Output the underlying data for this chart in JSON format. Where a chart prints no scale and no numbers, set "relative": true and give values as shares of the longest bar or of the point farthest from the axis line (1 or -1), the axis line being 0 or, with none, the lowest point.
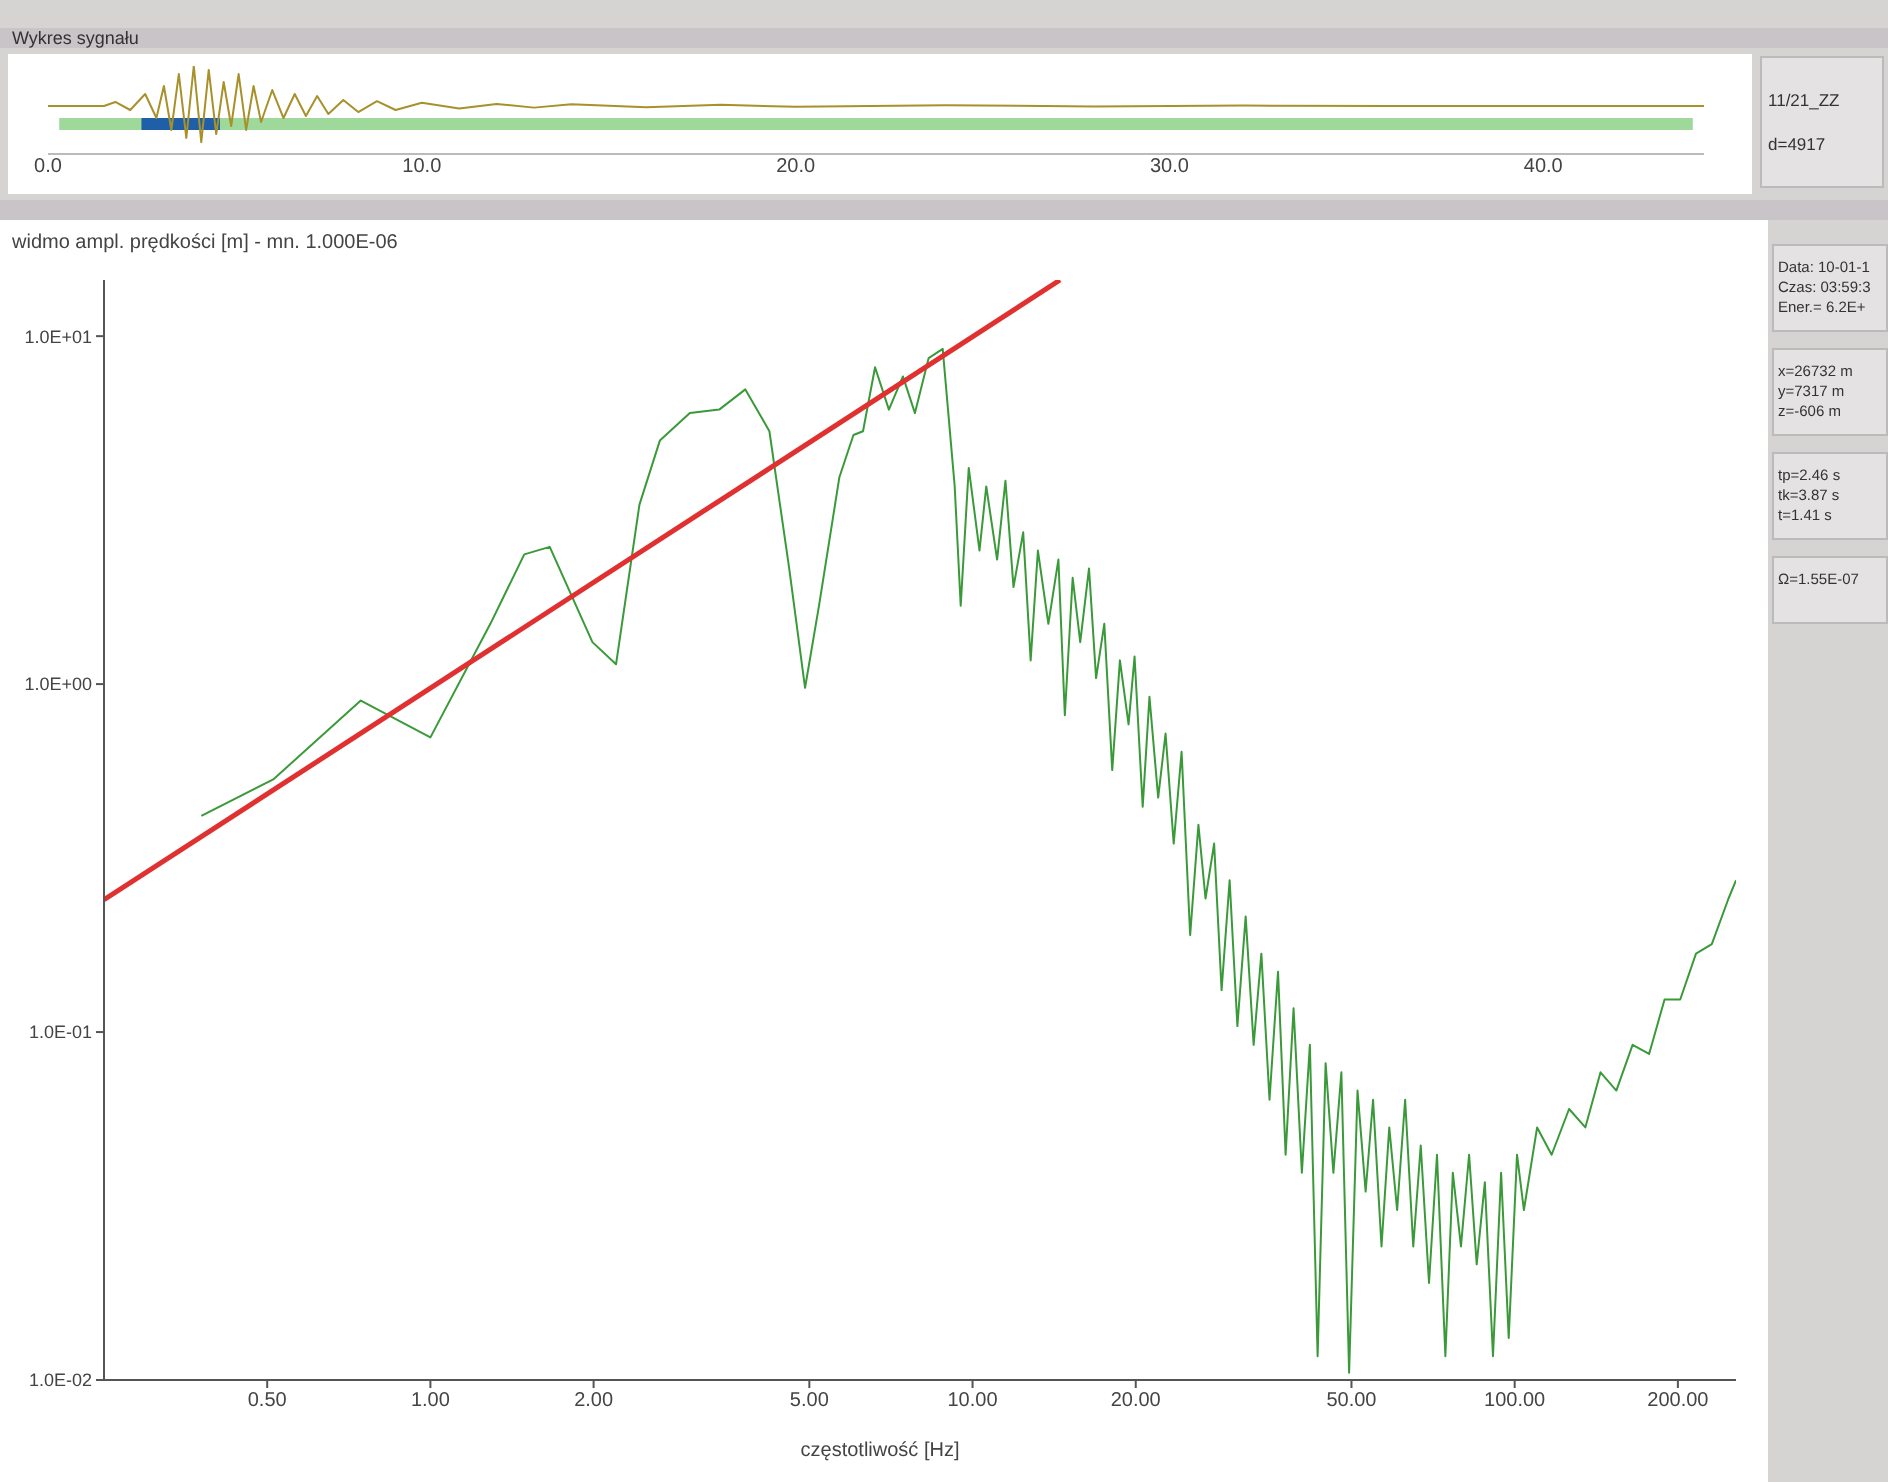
{
  "chart_data": [
    {
      "type": "line",
      "title": "Wykres sygnału",
      "relative": true,
      "xlim": [
        0,
        44.3
      ],
      "xticks": [
        {
          "value": 0,
          "label": "0.0"
        },
        {
          "value": 10,
          "label": "10.0"
        },
        {
          "value": 20,
          "label": "20.0"
        },
        {
          "value": 30,
          "label": "30.0"
        },
        {
          "value": 40,
          "label": "40.0"
        }
      ],
      "series": [
        {
          "color": "#a8902a",
          "x": [
            0,
            1.5,
            1.8,
            2.2,
            2.6,
            2.9,
            3.1,
            3.3,
            3.5,
            3.7,
            3.9,
            4.1,
            4.3,
            4.5,
            4.7,
            4.9,
            5.1,
            5.3,
            5.5,
            5.7,
            6.0,
            6.3,
            6.6,
            6.9,
            7.2,
            7.5,
            7.9,
            8.3,
            8.8,
            9.3,
            10,
            11,
            12,
            13,
            14,
            16,
            18,
            20,
            24,
            28,
            32,
            36,
            44.3
          ],
          "values": [
            0.545,
            0.545,
            0.591,
            0.5,
            0.682,
            0.409,
            0.773,
            0.273,
            0.909,
            0.182,
            1,
            0.136,
            0.955,
            0.227,
            0.818,
            0.318,
            0.909,
            0.273,
            0.773,
            0.364,
            0.727,
            0.409,
            0.682,
            0.432,
            0.659,
            0.455,
            0.614,
            0.477,
            0.6,
            0.5,
            0.582,
            0.518,
            0.568,
            0.527,
            0.564,
            0.532,
            0.559,
            0.536,
            0.555,
            0.541,
            0.55,
            0.545,
            0.545
          ]
        },
        {
          "color": "#9ed89a",
          "x": [
            0.3,
            44
          ],
          "values": [
            0.341,
            0.341
          ]
        },
        {
          "color": "#1f5fa8",
          "x": [
            2.5,
            4.6
          ],
          "values": [
            0.341,
            0.341
          ]
        }
      ],
      "annotations": [
        "11/21_ZZ",
        "d=4917"
      ]
    },
    {
      "type": "line",
      "ylabel": "widmo ampl. prędkości [m] - mn. 1.000E-06",
      "xlabel": "częstotliwość [Hz]",
      "log": "xy",
      "xlim": [
        0.25,
        256
      ],
      "ylim": [
        0.01,
        14.5
      ],
      "xticks": [
        {
          "value": 0.5,
          "label": "0.50"
        },
        {
          "value": 1,
          "label": "1.00"
        },
        {
          "value": 2,
          "label": "2.00"
        },
        {
          "value": 5,
          "label": "5.00"
        },
        {
          "value": 10,
          "label": "10.00"
        },
        {
          "value": 20,
          "label": "20.00"
        },
        {
          "value": 50,
          "label": "50.00"
        },
        {
          "value": 100,
          "label": "100.00"
        },
        {
          "value": 200,
          "label": "200.00"
        }
      ],
      "yticks": [
        {
          "value": 0.01,
          "label": "1.0E-02"
        },
        {
          "value": 0.1,
          "label": "1.0E-01"
        },
        {
          "value": 1,
          "label": "1.0E+00"
        },
        {
          "value": 10,
          "label": "1.0E+01"
        }
      ],
      "series": [
        {
          "color": "#3a9a3a",
          "x": [
            0.378,
            0.513,
            0.744,
            1.0,
            1.29,
            1.49,
            1.66,
            1.99,
            2.2,
            2.43,
            2.65,
            3.01,
            3.41,
            3.81,
            4.22,
            4.59,
            4.91,
            5.21,
            5.68,
            6.03,
            6.28,
            6.61,
            7.01,
            7.44,
            7.83,
            8.3,
            8.81,
            9.27,
            9.51,
            9.84,
            10.3,
            10.6,
            11.1,
            11.5,
            11.9,
            12.4,
            12.8,
            13.2,
            13.8,
            14.4,
            14.8,
            15.3,
            15.8,
            16.4,
            16.9,
            17.5,
            18.1,
            18.7,
            19.4,
            19.9,
            20.6,
            21.2,
            22.0,
            22.7,
            23.5,
            24.3,
            25.2,
            26.1,
            26.9,
            27.9,
            28.8,
            29.8,
            30.8,
            31.9,
            33.0,
            34.1,
            35.3,
            36.6,
            37.8,
            39.1,
            40.5,
            41.9,
            43.3,
            44.8,
            46.3,
            47.9,
            49.5,
            51.3,
            53.1,
            54.8,
            56.8,
            58.7,
            60.7,
            62.8,
            65.0,
            67.1,
            69.5,
            71.9,
            74.5,
            76.9,
            79.6,
            82.4,
            85.1,
            88.1,
            91.2,
            94.4,
            97.5,
            101,
            104,
            110,
            117,
            126,
            135,
            144,
            154,
            165,
            177,
            189,
            202,
            216,
            231,
            248,
            256
          ],
          "values": [
            0.418,
            0.532,
            0.897,
            0.703,
            1.49,
            2.36,
            2.48,
            1.32,
            1.14,
            3.28,
            5.01,
            6.01,
            6.15,
            7.03,
            5.33,
            2.15,
            0.976,
            1.68,
            3.93,
            5.2,
            5.33,
            8.14,
            6.15,
            7.66,
            6.01,
            8.65,
            9.19,
            3.7,
            1.68,
            4.18,
            2.42,
            3.7,
            2.28,
            3.84,
            1.9,
            2.73,
            1.17,
            2.42,
            1.49,
            2.28,
            0.814,
            2.02,
            1.32,
            2.15,
            1.04,
            1.49,
            0.566,
            1.17,
            0.766,
            1.2,
            0.444,
            0.919,
            0.472,
            0.721,
            0.348,
            0.639,
            0.19,
            0.394,
            0.242,
            0.348,
            0.132,
            0.273,
            0.104,
            0.215,
            0.0919,
            0.168,
            0.0639,
            0.149,
            0.0444,
            0.117,
            0.0394,
            0.0919,
            0.0117,
            0.0814,
            0.0394,
            0.0766,
            0.0105,
            0.0679,
            0.0348,
            0.0639,
            0.0242,
            0.0532,
            0.0308,
            0.0639,
            0.0242,
            0.0472,
            0.019,
            0.0444,
            0.0117,
            0.0394,
            0.0242,
            0.0444,
            0.0215,
            0.037,
            0.0117,
            0.0394,
            0.0132,
            0.0444,
            0.0308,
            0.0532,
            0.0444,
            0.0601,
            0.0532,
            0.0766,
            0.0679,
            0.0919,
            0.0865,
            0.124,
            0.124,
            0.168,
            0.179,
            0.242,
            0.273
          ]
        },
        {
          "color": "#e03030",
          "x": [
            0.25,
            14.5
          ],
          "values": [
            0.24,
            14.5
          ]
        }
      ],
      "annotations": [
        "Data: 10-01-1",
        "Czas: 03:59:3",
        "Ener.= 6.2E+",
        "x=26732 m",
        "y=7317 m",
        "z=-606 m",
        "tp=2.46 s",
        "tk=3.87 s",
        "t=1.41 s",
        "Ω=1.55E-07"
      ]
    }
  ]
}
